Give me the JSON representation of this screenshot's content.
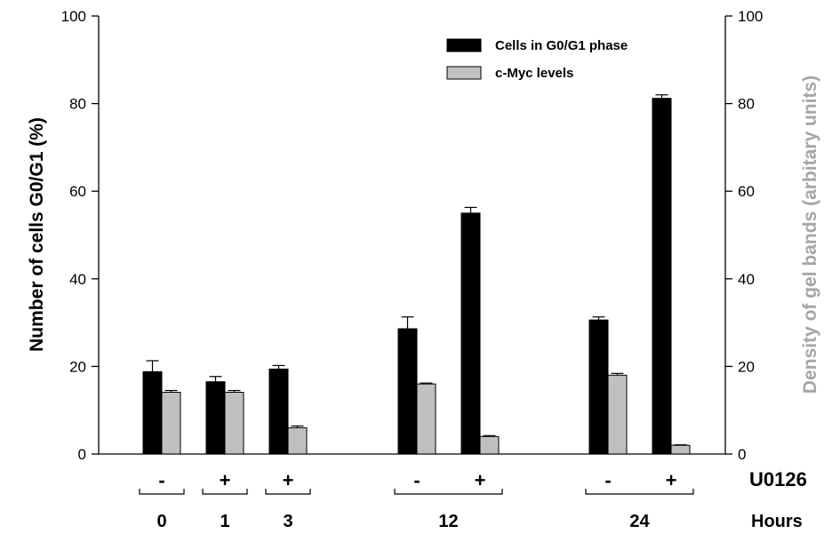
{
  "chart_data": {
    "type": "bar",
    "groups": [
      {
        "hours": "0",
        "treatment": "-"
      },
      {
        "hours": "1",
        "treatment": "+"
      },
      {
        "hours": "3",
        "treatment": "+"
      },
      {
        "hours": "12",
        "treatment": "-"
      },
      {
        "hours": "12",
        "treatment": "+"
      },
      {
        "hours": "24",
        "treatment": "-"
      },
      {
        "hours": "24",
        "treatment": "+"
      }
    ],
    "series": [
      {
        "name": "Cells in G0/G1 phase",
        "axis": "left",
        "color": "#000000",
        "values": [
          18.8,
          16.5,
          19.4,
          28.6,
          55.0,
          30.6,
          81.2
        ],
        "errors": [
          2.5,
          1.2,
          0.8,
          2.7,
          1.3,
          0.7,
          0.8
        ]
      },
      {
        "name": "c-Myc levels",
        "axis": "right",
        "color": "#c0c0c0",
        "values": [
          14.1,
          14.1,
          6.0,
          16.0,
          4.0,
          18.0,
          2.0
        ],
        "errors": [
          0.4,
          0.4,
          0.4,
          0.2,
          0.2,
          0.4,
          0.1
        ]
      }
    ],
    "ylabel_left": "Number of cells G0/G1 (%)",
    "ylabel_right": "Density of gel bands (arbitary units)",
    "ylim": [
      0,
      100
    ],
    "yticks": [
      "0",
      "20",
      "40",
      "60",
      "80",
      "100"
    ],
    "treatment_row_label": "U0126",
    "hours_row_label": "Hours",
    "hour_labels": [
      "0",
      "1",
      "3",
      "12",
      "24"
    ],
    "legend_position": "top-right",
    "grid": false
  },
  "colors": {
    "axis": "#000000",
    "right_axis_title": "#a6a6a6"
  }
}
